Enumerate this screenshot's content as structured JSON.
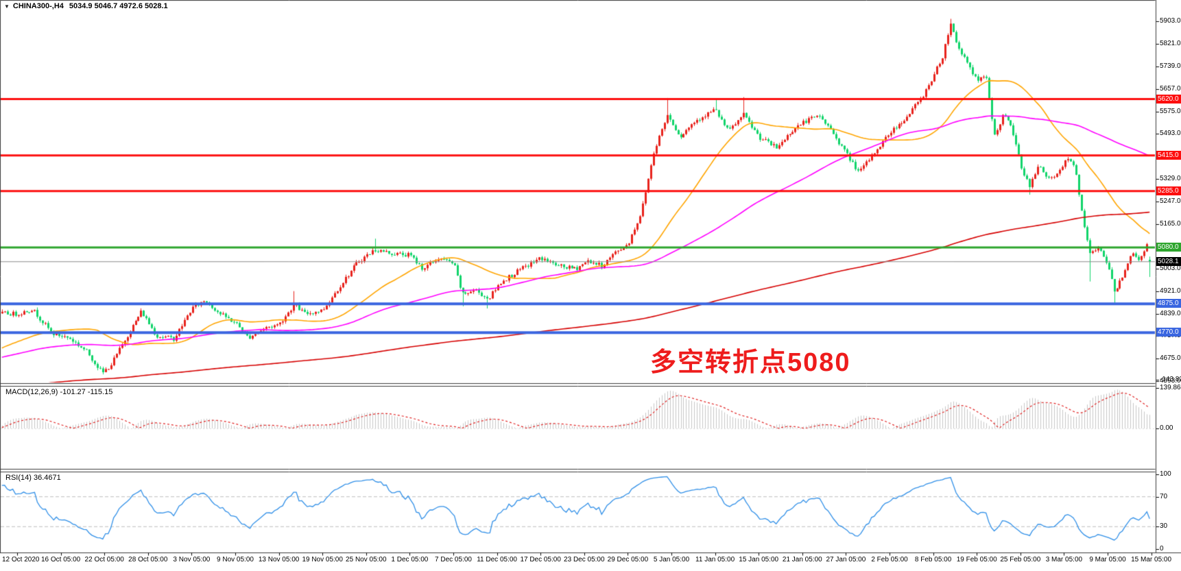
{
  "quote_bar": {
    "dropdown_icon": "▼",
    "symbol_period": "CHINA300-,H4",
    "ohlc": "5034.9 5046.7 4972.6 5028.1"
  },
  "chart_data": {
    "type": "candlestick",
    "title": "CHINA300- H4",
    "convention": "red = up candle, green = down candle",
    "up_color": "#e8221c",
    "down_color": "#10d46a",
    "x_labels": [
      "12 Oct 2020",
      "16 Oct 05:00",
      "22 Oct 05:00",
      "28 Oct 05:00",
      "3 Nov 05:00",
      "9 Nov 05:00",
      "13 Nov 05:00",
      "19 Nov 05:00",
      "25 Nov 05:00",
      "1 Dec 05:00",
      "7 Dec 05:00",
      "11 Dec 05:00",
      "17 Dec 05:00",
      "23 Dec 05:00",
      "29 Dec 05:00",
      "5 Jan 05:00",
      "11 Jan 05:00",
      "15 Jan 05:00",
      "21 Jan 05:00",
      "27 Jan 05:00",
      "2 Feb 05:00",
      "8 Feb 05:00",
      "19 Feb 05:00",
      "25 Feb 05:00",
      "3 Mar 05:00",
      "9 Mar 05:00",
      "15 Mar 05:00"
    ],
    "price_axis": {
      "ylim": [
        4586,
        5978
      ],
      "ticks": [
        5903,
        5821,
        5739,
        5657,
        5575,
        5493,
        5329,
        5247,
        5165,
        5003,
        4921,
        4839,
        4757,
        4675,
        4593
      ]
    },
    "quote": {
      "open": 5034.9,
      "high": 5046.7,
      "low": 4972.6,
      "close": 5028.1
    },
    "levels": [
      {
        "label": "5620.0",
        "price": 5620,
        "line_color": "#fd0e0e",
        "badge_color": "#fd0e0e",
        "width": 3
      },
      {
        "label": "5415.0",
        "price": 5415,
        "line_color": "#fd0e0e",
        "badge_color": "#fd0e0e",
        "width": 3
      },
      {
        "label": "5285.0",
        "price": 5285,
        "line_color": "#fd0e0e",
        "badge_color": "#fd0e0e",
        "width": 3
      },
      {
        "label": "5080.0",
        "price": 5080,
        "line_color": "#2da52d",
        "badge_color": "#2da52d",
        "width": 3
      },
      {
        "label": "5028.1",
        "price": 5028.1,
        "line_color": "#8a8a8a",
        "badge_color": "#000000",
        "width": 1
      },
      {
        "label": "4875.0",
        "price": 4875,
        "line_color": "#3a66e0",
        "badge_color": "#3a66e0",
        "width": 4
      },
      {
        "label": "4770.0",
        "price": 4770,
        "line_color": "#3a66e0",
        "badge_color": "#3a66e0",
        "width": 4
      }
    ],
    "bars": {
      "t_start": -0.35,
      "t_end": 26,
      "per_label_interval": 16
    },
    "close_path": [
      [
        -0.35,
        4840
      ],
      [
        0,
        4838
      ],
      [
        0.35,
        4856
      ],
      [
        0.8,
        4768
      ],
      [
        1.2,
        4750
      ],
      [
        1.6,
        4700
      ],
      [
        1.95,
        4622
      ],
      [
        2.15,
        4655
      ],
      [
        2.5,
        4754
      ],
      [
        2.85,
        4848
      ],
      [
        3.2,
        4758
      ],
      [
        3.6,
        4748
      ],
      [
        4.0,
        4858
      ],
      [
        4.3,
        4888
      ],
      [
        4.65,
        4838
      ],
      [
        5.0,
        4805
      ],
      [
        5.3,
        4752
      ],
      [
        5.7,
        4788
      ],
      [
        6.0,
        4800
      ],
      [
        6.35,
        4872
      ],
      [
        6.6,
        4838
      ],
      [
        7.0,
        4852
      ],
      [
        7.4,
        4942
      ],
      [
        7.8,
        5026
      ],
      [
        8.2,
        5072
      ],
      [
        8.6,
        5058
      ],
      [
        9.0,
        5052
      ],
      [
        9.3,
        5002
      ],
      [
        9.65,
        5040
      ],
      [
        10.0,
        5022
      ],
      [
        10.2,
        4908
      ],
      [
        10.5,
        4926
      ],
      [
        10.8,
        4892
      ],
      [
        11.1,
        4956
      ],
      [
        11.5,
        4996
      ],
      [
        12.0,
        5042
      ],
      [
        12.4,
        5012
      ],
      [
        12.8,
        5002
      ],
      [
        13.1,
        5032
      ],
      [
        13.4,
        5012
      ],
      [
        13.7,
        5060
      ],
      [
        14.0,
        5092
      ],
      [
        14.3,
        5206
      ],
      [
        14.6,
        5436
      ],
      [
        14.9,
        5562
      ],
      [
        15.2,
        5484
      ],
      [
        15.55,
        5542
      ],
      [
        16.0,
        5582
      ],
      [
        16.3,
        5502
      ],
      [
        16.65,
        5562
      ],
      [
        17.0,
        5482
      ],
      [
        17.4,
        5442
      ],
      [
        17.8,
        5512
      ],
      [
        18.1,
        5542
      ],
      [
        18.4,
        5558
      ],
      [
        18.7,
        5498
      ],
      [
        19.0,
        5422
      ],
      [
        19.3,
        5352
      ],
      [
        19.65,
        5426
      ],
      [
        20.0,
        5498
      ],
      [
        20.4,
        5556
      ],
      [
        20.75,
        5628
      ],
      [
        21.0,
        5702
      ],
      [
        21.2,
        5768
      ],
      [
        21.4,
        5898
      ],
      [
        21.55,
        5812
      ],
      [
        21.75,
        5764
      ],
      [
        22.0,
        5684
      ],
      [
        22.2,
        5704
      ],
      [
        22.4,
        5486
      ],
      [
        22.6,
        5562
      ],
      [
        22.8,
        5518
      ],
      [
        23.0,
        5386
      ],
      [
        23.2,
        5302
      ],
      [
        23.45,
        5382
      ],
      [
        23.65,
        5326
      ],
      [
        23.85,
        5342
      ],
      [
        24.05,
        5402
      ],
      [
        24.25,
        5372
      ],
      [
        24.45,
        5156
      ],
      [
        24.6,
        5052
      ],
      [
        24.8,
        5084
      ],
      [
        25.0,
        5018
      ],
      [
        25.15,
        4916
      ],
      [
        25.35,
        4982
      ],
      [
        25.55,
        5062
      ],
      [
        25.7,
        5032
      ],
      [
        25.9,
        5088
      ],
      [
        26.0,
        5028.1
      ]
    ],
    "spikes": [
      {
        "t": 1.95,
        "low": 4618
      },
      {
        "t": 6.35,
        "high": 4921
      },
      {
        "t": 8.2,
        "high": 5112
      },
      {
        "t": 10.2,
        "low": 4866
      },
      {
        "t": 10.8,
        "low": 4858
      },
      {
        "t": 14.9,
        "high": 5624
      },
      {
        "t": 16.0,
        "high": 5621
      },
      {
        "t": 16.65,
        "high": 5627
      },
      {
        "t": 21.4,
        "high": 5912
      },
      {
        "t": 23.2,
        "low": 5272
      },
      {
        "t": 24.6,
        "low": 4956
      },
      {
        "t": 25.15,
        "low": 4878
      }
    ],
    "moving_averages": [
      {
        "name": "fast-ma",
        "period": 36,
        "color": "#ffa500"
      },
      {
        "name": "medium-ma",
        "period": 96,
        "color": "#ff00ff"
      },
      {
        "name": "slow-ma",
        "period": 360,
        "color": "#d60000"
      }
    ],
    "indicators": [
      {
        "name": "macd",
        "label": "MACD(12,26,9) -101.27 -115.15",
        "params": [
          12,
          26,
          9
        ],
        "current_main": -101.27,
        "current_signal": -115.15,
        "axis_labels": [
          "139.86",
          "0.00",
          "-143.82"
        ],
        "histogram_color": "#c6c6c6",
        "signal_color": "#e02020"
      },
      {
        "name": "rsi",
        "label": "RSI(14) 36.4671",
        "params": [
          14
        ],
        "current": 36.4671,
        "axis_labels": [
          "100",
          "70",
          "30",
          "0"
        ],
        "levels": [
          70,
          30
        ],
        "line_color": "#2f8fe8",
        "level_color": "#bdbdbd"
      }
    ],
    "annotation": {
      "text": "多空转折点5080",
      "color": "#ee1c1c"
    }
  }
}
